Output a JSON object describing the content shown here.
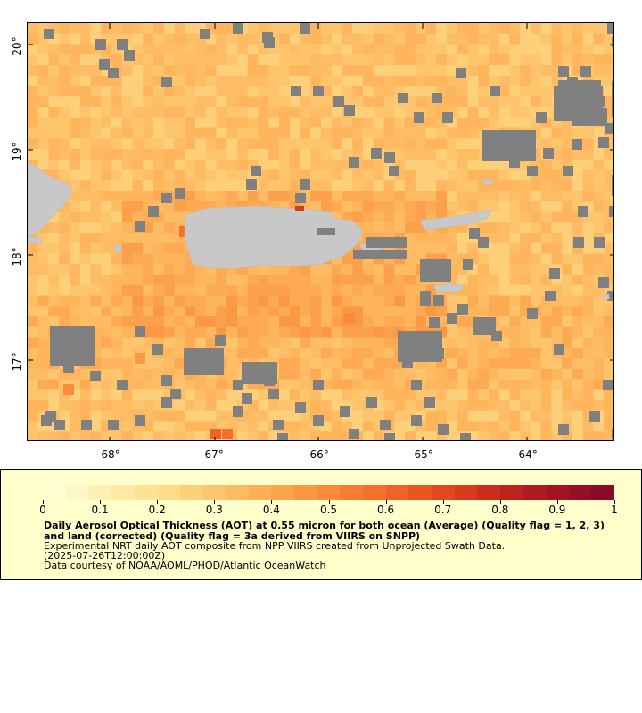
{
  "map": {
    "y_axis_labels": [
      "20°",
      "19°",
      "18°",
      "17°"
    ],
    "x_axis_labels": [
      "-68°",
      "-67°",
      "-66°",
      "-65°",
      "-64°"
    ],
    "colors": {
      "no_data": "#808080",
      "land": "#c8c8c8",
      "frame": "#000000"
    },
    "lon_range": [
      -68.8,
      -63.2
    ],
    "lat_range": [
      16.3,
      20.3
    ]
  },
  "legend": {
    "colorbar_colors": [
      "#ffffd4",
      "#fff7c4",
      "#fff0b4",
      "#ffe9a4",
      "#ffe296",
      "#fedc88",
      "#fed07a",
      "#fec56d",
      "#feba61",
      "#feaf56",
      "#fea44c",
      "#fe9743",
      "#fb8a3a",
      "#f87d32",
      "#f4702c",
      "#ef6327",
      "#e85523",
      "#e04820",
      "#d63b1e",
      "#cb2e1c",
      "#be231d",
      "#b11a1f",
      "#a31422",
      "#950f25",
      "#880b28"
    ],
    "tick_labels": [
      "0",
      "0.1",
      "0.2",
      "0.3",
      "0.4",
      "0.5",
      "0.6",
      "0.7",
      "0.8",
      "0.9",
      "1"
    ],
    "title": "Daily Aerosol Optical Thickness (AOT) at 0.55 micron for both ocean (Average) (Quality flag = 1, 2, 3) and land (corrected) (Quality flag = 3a derived from VIIRS on SNPP)",
    "line1": "Experimental NRT daily AOT composite from NPP VIIRS created from Unprojected Swath Data.",
    "line2": "(2025-07-26T12:00:00Z)",
    "line3": "Data courtesy of NOAA/AOML/PHOD/Atlantic OceanWatch"
  }
}
